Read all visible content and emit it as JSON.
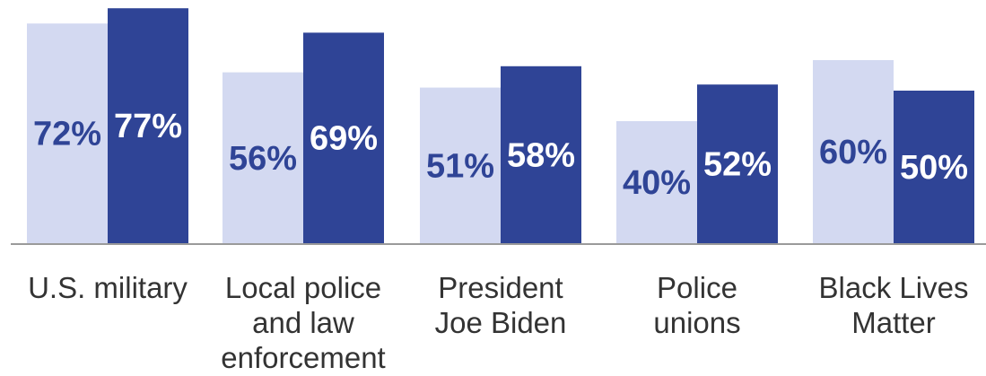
{
  "chart_data": {
    "type": "bar",
    "categories": [
      [
        "U.S. military"
      ],
      [
        "Local police",
        "and law",
        "enforcement"
      ],
      [
        "President",
        "Joe Biden"
      ],
      [
        "Police",
        "unions"
      ],
      [
        "Black Lives",
        "Matter"
      ]
    ],
    "series": [
      {
        "values": [
          72,
          56,
          51,
          40,
          60
        ],
        "labels": [
          "72%",
          "56%",
          "51%",
          "40%",
          "60%"
        ],
        "color": "#d3d9f1",
        "label_color": "#2f4496"
      },
      {
        "values": [
          77,
          69,
          58,
          52,
          50
        ],
        "labels": [
          "77%",
          "69%",
          "58%",
          "52%",
          "50%"
        ],
        "color": "#2f4496",
        "label_color": "#ffffff"
      }
    ],
    "ylim": [
      0,
      100
    ],
    "grid": false,
    "legend": "none",
    "baseline_color": "#9a9a9a"
  }
}
